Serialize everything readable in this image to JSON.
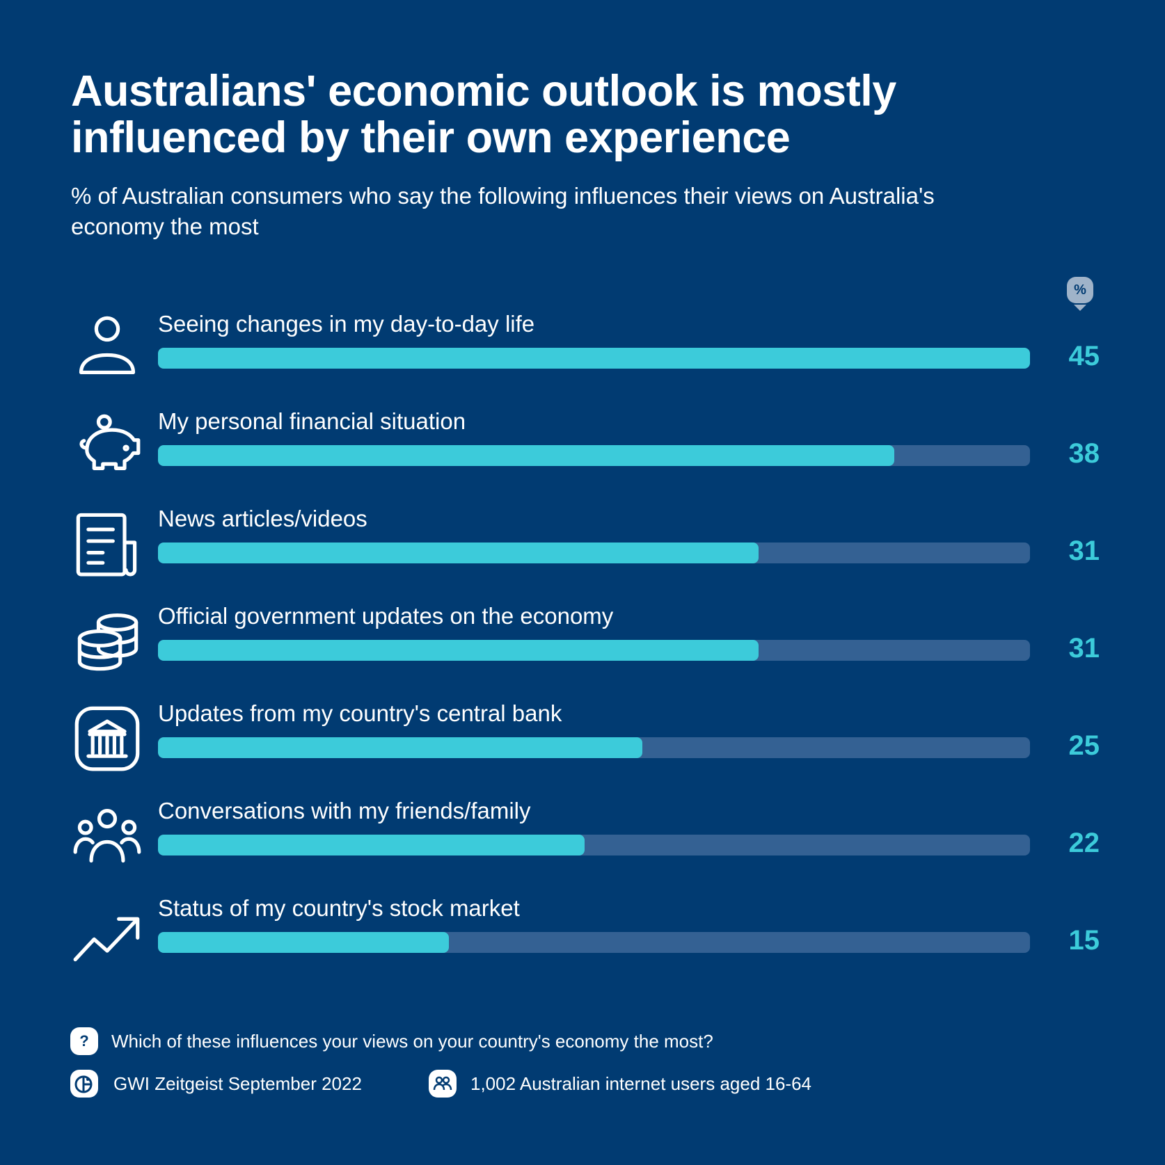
{
  "title": "Australians' economic outlook is mostly influenced by their own experience",
  "subtitle": "% of Australian consumers who say the following influences their views on Australia's economy the most",
  "unit_badge": "%",
  "colors": {
    "background": "#013b72",
    "track": "#346193",
    "fill": "#3ccbda",
    "value": "#3ccbda"
  },
  "chart_data": {
    "type": "bar",
    "orientation": "horizontal",
    "title": "Australians' economic outlook is mostly influenced by their own experience",
    "ylabel": "%",
    "xlim": [
      0,
      45
    ],
    "categories": [
      "Seeing changes in my day-to-day life",
      "My personal financial situation",
      "News articles/videos",
      "Official government updates on the economy",
      "Updates from my country's central bank",
      "Conversations with my friends/family",
      "Status of my country's stock market"
    ],
    "values": [
      45,
      38,
      31,
      31,
      25,
      22,
      15
    ],
    "icons": [
      "person-icon",
      "piggy-bank-icon",
      "news-icon",
      "coins-icon",
      "bank-icon",
      "group-icon",
      "trend-up-icon"
    ]
  },
  "footer": {
    "question": "Which of these influences your views on your country's economy the most?",
    "source": "GWI Zeitgeist September 2022",
    "sample": "1,002 Australian internet users aged 16-64",
    "question_icon": "?"
  }
}
